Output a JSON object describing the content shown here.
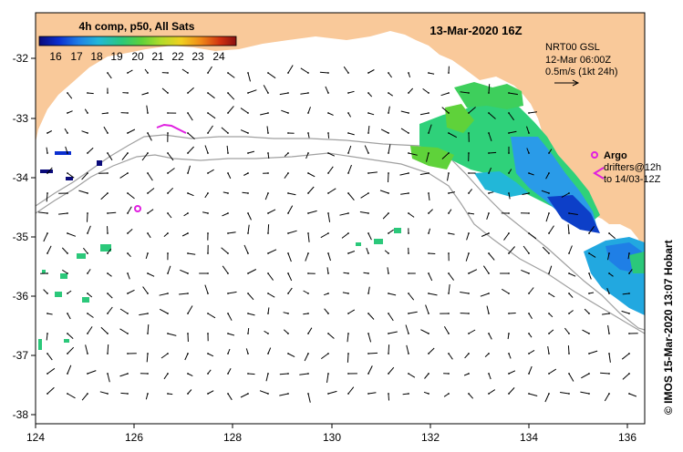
{
  "title": "13-Mar-2020 16Z",
  "colorbar": {
    "title": "4h comp, p50, All Sats",
    "ticks": [
      "16",
      "17",
      "18",
      "19",
      "20",
      "21",
      "22",
      "23",
      "24"
    ],
    "colors": [
      "#0a0a7a",
      "#0b2fd0",
      "#1f7fe6",
      "#22b7d8",
      "#2bc87a",
      "#5fd23a",
      "#b3dc2a",
      "#f0d020",
      "#f08a18",
      "#d03010",
      "#8a1010"
    ]
  },
  "current_info": {
    "line1": "NRT00 GSL",
    "line2": "12-Mar 06:00Z",
    "line3": "0.5m/s (1kt 24h)"
  },
  "argo": {
    "label": "Argo",
    "color": "#e020e0"
  },
  "drifters": {
    "line1": "drifters@12h",
    "line2": "to 14/03-12Z"
  },
  "credit": "© IMOS 15-Mar-2020 13:07 Hobart",
  "axes": {
    "x_ticks": [
      "124",
      "126",
      "128",
      "130",
      "132",
      "134",
      "136"
    ],
    "y_ticks": [
      "-32",
      "-33",
      "-34",
      "-35",
      "-36",
      "-37",
      "-38"
    ]
  },
  "colors": {
    "land": "#f9c99a",
    "frame": "#000000",
    "isobath": "#a0a0a0"
  }
}
